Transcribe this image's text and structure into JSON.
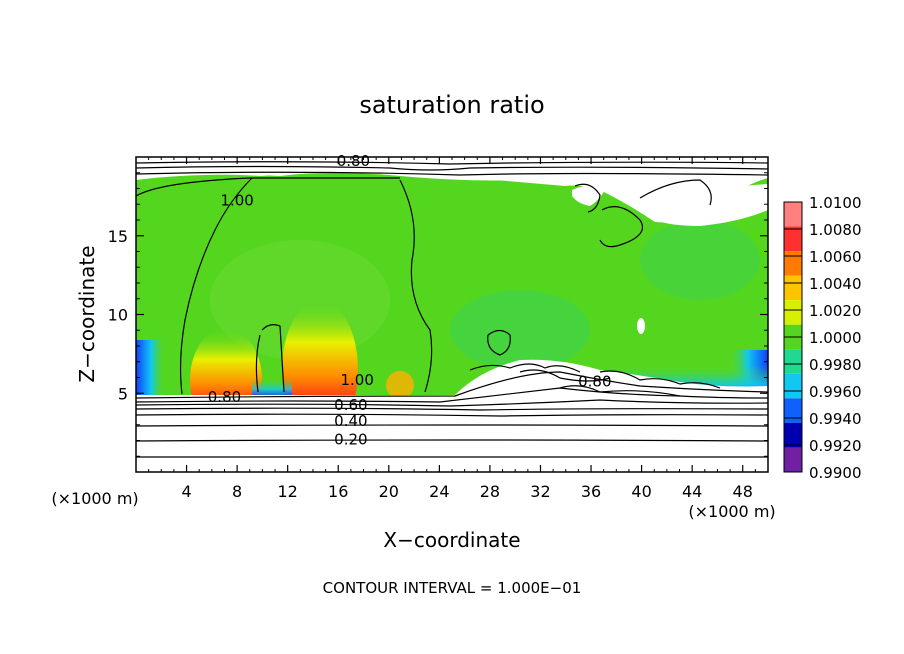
{
  "chart_data": {
    "type": "heatmap",
    "title": "saturation ratio",
    "xlabel": "X−coordinate",
    "ylabel": "Z−coordinate",
    "x_unit_left": "(×1000 m)",
    "x_unit_right": "(×1000 m)",
    "xlim": [
      0,
      50
    ],
    "ylim": [
      0,
      20
    ],
    "x_ticks": [
      4,
      8,
      12,
      16,
      20,
      24,
      28,
      32,
      36,
      40,
      44,
      48
    ],
    "y_ticks": [
      5,
      10,
      15
    ],
    "footer": "CONTOUR INTERVAL = 1.000E−01",
    "colorbar": {
      "levels": [
        "1.0100",
        "1.0080",
        "1.0060",
        "1.0040",
        "1.0020",
        "1.0000",
        "0.9980",
        "0.9960",
        "0.9940",
        "0.9920",
        "0.9900"
      ],
      "colors": [
        "#ff8080",
        "#ff3030",
        "#ff7a00",
        "#ffc400",
        "#d8f000",
        "#55d61e",
        "#20d890",
        "#10c8f0",
        "#1060ff",
        "#0000b0",
        "#7020a0"
      ]
    },
    "contour_labels": [
      {
        "text": "0.80",
        "x": 17.2,
        "y": 19.5
      },
      {
        "text": "1.00",
        "x": 8.0,
        "y": 17.0
      },
      {
        "text": "0.80",
        "x": 7.0,
        "y": 4.5
      },
      {
        "text": "1.00",
        "x": 17.5,
        "y": 5.6
      },
      {
        "text": "0.60",
        "x": 17.0,
        "y": 4.0
      },
      {
        "text": "0.40",
        "x": 17.0,
        "y": 3.0
      },
      {
        "text": "0.20",
        "x": 17.0,
        "y": 1.8
      },
      {
        "text": "0.80",
        "x": 36.3,
        "y": 5.5
      }
    ],
    "contour_levels": [
      0.2,
      0.4,
      0.6,
      0.8,
      1.0
    ]
  }
}
